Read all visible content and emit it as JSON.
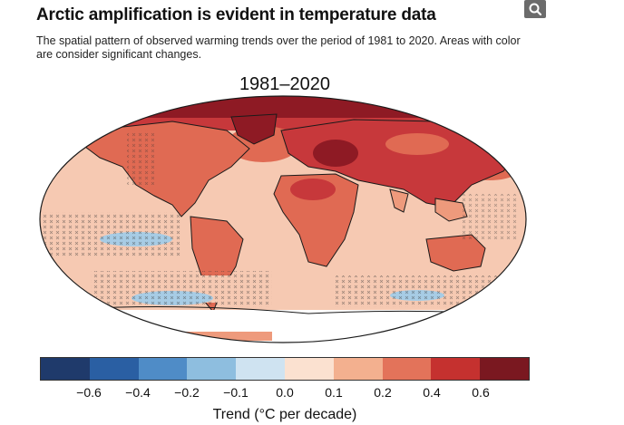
{
  "header": {
    "title": "Arctic amplification is evident in temperature data",
    "description": "The spatial pattern of observed warming trends over the period of 1981 to 2020. Areas with color are consider significant changes."
  },
  "toolbar": {
    "search_icon": "search-icon"
  },
  "map": {
    "title": "1981–2020",
    "colors": {
      "ocean_light": "#f6c9b2",
      "land_mid": "#ee9a7c",
      "land_warm": "#e06a53",
      "hot": "#c7383b",
      "very_hot": "#8e1a24",
      "cool": "#a7cce5",
      "coast": "#1a1a1a"
    }
  },
  "colorbar": {
    "colors": [
      "#1f3a6b",
      "#2a5fa3",
      "#4f8cc7",
      "#8ebedf",
      "#cfe3f1",
      "#fbe1d0",
      "#f3b08f",
      "#e3735a",
      "#c5312f",
      "#7a1820"
    ],
    "ticks": [
      "−0.6",
      "−0.4",
      "−0.2",
      "−0.1",
      "0.0",
      "0.1",
      "0.2",
      "0.4",
      "0.6"
    ],
    "label": "Trend (°C per decade)"
  }
}
